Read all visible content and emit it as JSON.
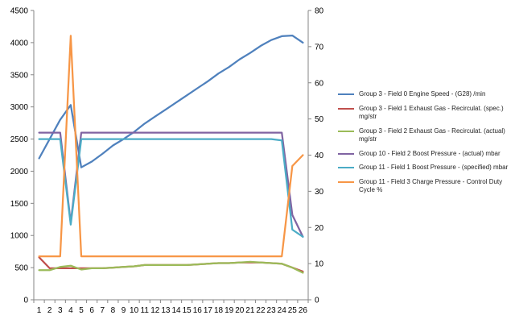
{
  "chart_data": {
    "type": "line",
    "x": [
      1,
      2,
      3,
      4,
      5,
      6,
      7,
      8,
      9,
      10,
      11,
      12,
      13,
      14,
      15,
      16,
      17,
      18,
      19,
      20,
      21,
      22,
      23,
      24,
      25,
      26
    ],
    "y_left": {
      "min": 0,
      "max": 4500,
      "ticks": [
        0,
        500,
        1000,
        1500,
        2000,
        2500,
        3000,
        3500,
        4000,
        4500
      ]
    },
    "y_right": {
      "min": 0,
      "max": 80,
      "ticks": [
        0,
        10,
        20,
        30,
        40,
        50,
        60,
        70,
        80
      ]
    },
    "grid": false,
    "legend_position": "right",
    "series": [
      {
        "name": "Group 3 - Field 0 Engine Speed - (G28)  /min",
        "color": "#4F81BD",
        "axis": "left",
        "values": [
          2200,
          2500,
          2800,
          3030,
          2060,
          2150,
          2270,
          2400,
          2500,
          2610,
          2740,
          2850,
          2960,
          3070,
          3180,
          3290,
          3400,
          3520,
          3620,
          3740,
          3840,
          3950,
          4040,
          4100,
          4110,
          4000
        ]
      },
      {
        "name": "Group 3 - Field 1 Exhaust Gas - Recirculat. (spec.) mg/str",
        "color": "#C0504D",
        "axis": "left",
        "values": [
          660,
          490,
          490,
          490,
          490,
          490,
          490,
          500,
          510,
          520,
          540,
          540,
          540,
          540,
          540,
          550,
          560,
          570,
          570,
          580,
          580,
          580,
          570,
          560,
          500,
          440
        ]
      },
      {
        "name": "Group 3 - Field 2 Exhaust Gas - Recirculat. (actual)  mg/str",
        "color": "#9BBB59",
        "axis": "left",
        "values": [
          460,
          460,
          510,
          530,
          470,
          490,
          490,
          500,
          510,
          520,
          540,
          540,
          540,
          540,
          540,
          550,
          560,
          570,
          570,
          580,
          590,
          580,
          570,
          560,
          500,
          420
        ]
      },
      {
        "name": "Group 10 - Field 2 Boost Pressure - (actual) mbar",
        "color": "#8064A2",
        "axis": "left",
        "values": [
          2600,
          2600,
          2600,
          1200,
          2600,
          2600,
          2600,
          2600,
          2600,
          2600,
          2600,
          2600,
          2600,
          2600,
          2600,
          2600,
          2600,
          2600,
          2600,
          2600,
          2600,
          2600,
          2600,
          2600,
          1320,
          980
        ]
      },
      {
        "name": "Group 11 - Field 1 Boost Pressure - (specified)  mbar",
        "color": "#4BACC6",
        "axis": "left",
        "values": [
          2500,
          2500,
          2500,
          1170,
          2500,
          2500,
          2500,
          2500,
          2500,
          2500,
          2500,
          2500,
          2500,
          2500,
          2500,
          2500,
          2500,
          2500,
          2500,
          2500,
          2500,
          2500,
          2500,
          2480,
          1090,
          980
        ]
      },
      {
        "name": "Group 11 - Field 3 Charge Pressure - Control Duty Cycle  %",
        "color": "#F79646",
        "axis": "right",
        "values": [
          12,
          12,
          12,
          73,
          12,
          12,
          12,
          12,
          12,
          12,
          12,
          12,
          12,
          12,
          12,
          12,
          12,
          12,
          12,
          12,
          12,
          12,
          12,
          12,
          37,
          40
        ]
      }
    ]
  }
}
